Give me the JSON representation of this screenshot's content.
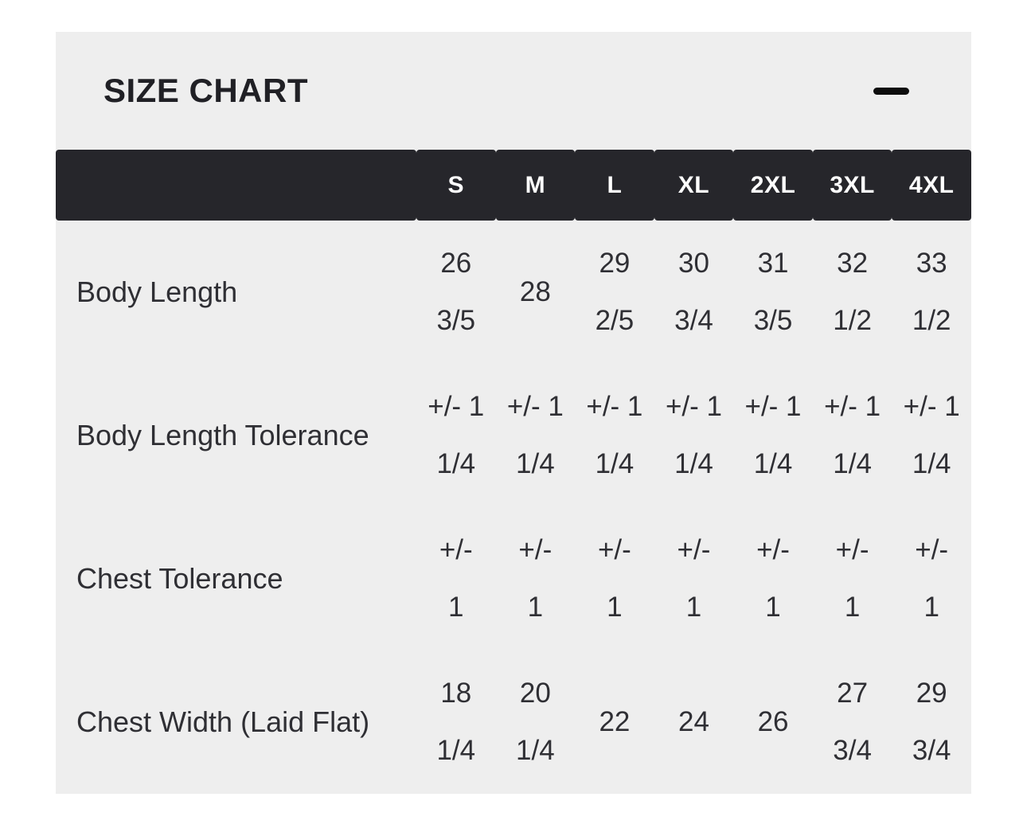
{
  "panel": {
    "title": "SIZE CHART",
    "collapse_icon": "minus"
  },
  "size_chart": {
    "columns": [
      "S",
      "M",
      "L",
      "XL",
      "2XL",
      "3XL",
      "4XL"
    ],
    "rows": [
      {
        "label": "Body Length",
        "values": [
          "26\n3/5",
          "28",
          "29\n2/5",
          "30\n3/4",
          "31\n3/5",
          "32\n1/2",
          "33\n1/2"
        ]
      },
      {
        "label": "Body Length Tolerance",
        "values": [
          "+/- 1\n1/4",
          "+/- 1\n1/4",
          "+/- 1\n1/4",
          "+/- 1\n1/4",
          "+/- 1\n1/4",
          "+/- 1\n1/4",
          "+/- 1\n1/4"
        ]
      },
      {
        "label": "Chest Tolerance",
        "values": [
          "+/-\n1",
          "+/-\n1",
          "+/-\n1",
          "+/-\n1",
          "+/-\n1",
          "+/-\n1",
          "+/-\n1"
        ]
      },
      {
        "label": "Chest Width (Laid Flat)",
        "values": [
          "18\n1/4",
          "20\n1/4",
          "22",
          "24",
          "26",
          "27\n3/4",
          "29\n3/4"
        ]
      }
    ]
  },
  "colors": {
    "card_bg": "#eeeeee",
    "header_bg": "#26262b",
    "header_text": "#ffffff",
    "text": "#2f2f34",
    "icon": "#0d0d0d"
  }
}
